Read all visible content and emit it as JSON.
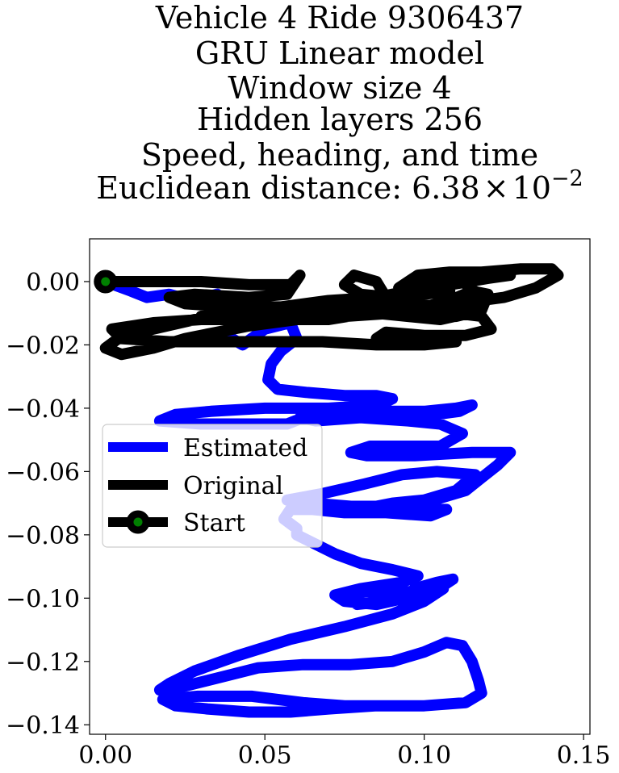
{
  "chart_data": {
    "type": "line",
    "title_lines": [
      "Vehicle 4 Ride 9306437",
      "GRU Linear model",
      "Window size 4",
      "Hidden layers 256",
      "Speed, heading, and time"
    ],
    "title_metric_prefix": "Euclidean distance: 6.38",
    "title_metric_times": "×",
    "title_metric_base": "10",
    "title_metric_exponent": "−2",
    "xlabel": "",
    "ylabel": "",
    "xlim": [
      -0.005,
      0.152
    ],
    "ylim": [
      -0.143,
      0.0135
    ],
    "x_ticks": [
      0.0,
      0.05,
      0.1,
      0.15
    ],
    "x_tick_labels": [
      "0.00",
      "0.05",
      "0.10",
      "0.15"
    ],
    "y_ticks": [
      0.0,
      -0.02,
      -0.04,
      -0.06,
      -0.08,
      -0.1,
      -0.12,
      -0.14
    ],
    "y_tick_labels": [
      "0.00",
      "−0.02",
      "−0.04",
      "−0.06",
      "−0.08",
      "−0.10",
      "−0.12",
      "−0.14"
    ],
    "grid": false,
    "legend_position": "center-left",
    "colors": {
      "estimated": "#0000ff",
      "original": "#000000",
      "start_marker_face": "#008000",
      "start_marker_edge": "#000000"
    },
    "series": [
      {
        "name": "Estimated",
        "points": [
          [
            0.0,
            0.0
          ],
          [
            0.008,
            -0.003
          ],
          [
            0.013,
            -0.005
          ],
          [
            0.02,
            -0.004
          ],
          [
            0.027,
            -0.006
          ],
          [
            0.035,
            -0.004
          ],
          [
            0.04,
            -0.01
          ],
          [
            0.038,
            -0.017
          ],
          [
            0.043,
            -0.02
          ],
          [
            0.05,
            -0.015
          ],
          [
            0.058,
            -0.013
          ],
          [
            0.06,
            -0.018
          ],
          [
            0.055,
            -0.022
          ],
          [
            0.052,
            -0.026
          ],
          [
            0.051,
            -0.031
          ],
          [
            0.054,
            -0.034
          ],
          [
            0.063,
            -0.035
          ],
          [
            0.075,
            -0.036
          ],
          [
            0.085,
            -0.036
          ],
          [
            0.09,
            -0.037
          ],
          [
            0.086,
            -0.039
          ],
          [
            0.07,
            -0.04
          ],
          [
            0.05,
            -0.04
          ],
          [
            0.033,
            -0.041
          ],
          [
            0.022,
            -0.042
          ],
          [
            0.017,
            -0.044
          ],
          [
            0.03,
            -0.045
          ],
          [
            0.05,
            -0.045
          ],
          [
            0.057,
            -0.045
          ],
          [
            0.062,
            -0.043
          ],
          [
            0.08,
            -0.041
          ],
          [
            0.1,
            -0.041
          ],
          [
            0.11,
            -0.04
          ],
          [
            0.115,
            -0.039
          ],
          [
            0.111,
            -0.041
          ],
          [
            0.096,
            -0.043
          ],
          [
            0.08,
            -0.043
          ],
          [
            0.066,
            -0.044
          ],
          [
            0.061,
            -0.043
          ],
          [
            0.07,
            -0.042
          ],
          [
            0.08,
            -0.043
          ],
          [
            0.095,
            -0.044
          ],
          [
            0.105,
            -0.045
          ],
          [
            0.112,
            -0.048
          ],
          [
            0.105,
            -0.052
          ],
          [
            0.092,
            -0.052
          ],
          [
            0.083,
            -0.052
          ],
          [
            0.077,
            -0.054
          ],
          [
            0.082,
            -0.055
          ],
          [
            0.097,
            -0.055
          ],
          [
            0.115,
            -0.054
          ],
          [
            0.127,
            -0.054
          ],
          [
            0.123,
            -0.058
          ],
          [
            0.118,
            -0.062
          ],
          [
            0.113,
            -0.066
          ],
          [
            0.103,
            -0.069
          ],
          [
            0.09,
            -0.071
          ],
          [
            0.077,
            -0.071
          ],
          [
            0.065,
            -0.07
          ],
          [
            0.057,
            -0.069
          ],
          [
            0.068,
            -0.067
          ],
          [
            0.081,
            -0.064
          ],
          [
            0.093,
            -0.061
          ],
          [
            0.104,
            -0.06
          ],
          [
            0.116,
            -0.061
          ],
          [
            0.11,
            -0.066
          ],
          [
            0.1,
            -0.069
          ],
          [
            0.09,
            -0.07
          ],
          [
            0.085,
            -0.071
          ],
          [
            0.095,
            -0.072
          ],
          [
            0.107,
            -0.072
          ],
          [
            0.102,
            -0.074
          ],
          [
            0.088,
            -0.073
          ],
          [
            0.075,
            -0.073
          ],
          [
            0.065,
            -0.072
          ],
          [
            0.058,
            -0.072
          ],
          [
            0.056,
            -0.075
          ],
          [
            0.06,
            -0.078
          ],
          [
            0.06,
            -0.08
          ],
          [
            0.066,
            -0.083
          ],
          [
            0.072,
            -0.086
          ],
          [
            0.08,
            -0.089
          ],
          [
            0.09,
            -0.091
          ],
          [
            0.098,
            -0.093
          ],
          [
            0.093,
            -0.095
          ],
          [
            0.08,
            -0.097
          ],
          [
            0.072,
            -0.099
          ],
          [
            0.075,
            -0.101
          ],
          [
            0.085,
            -0.102
          ],
          [
            0.094,
            -0.1
          ],
          [
            0.103,
            -0.098
          ],
          [
            0.109,
            -0.094
          ],
          [
            0.104,
            -0.095
          ],
          [
            0.097,
            -0.097
          ],
          [
            0.095,
            -0.1
          ],
          [
            0.088,
            -0.101
          ],
          [
            0.079,
            -0.102
          ],
          [
            0.076,
            -0.1
          ],
          [
            0.079,
            -0.098
          ],
          [
            0.086,
            -0.098
          ],
          [
            0.09,
            -0.099
          ],
          [
            0.1,
            -0.097
          ],
          [
            0.106,
            -0.097
          ],
          [
            0.1,
            -0.101
          ],
          [
            0.09,
            -0.105
          ],
          [
            0.075,
            -0.109
          ],
          [
            0.058,
            -0.113
          ],
          [
            0.042,
            -0.118
          ],
          [
            0.028,
            -0.123
          ],
          [
            0.02,
            -0.127
          ],
          [
            0.017,
            -0.129
          ],
          [
            0.024,
            -0.128
          ],
          [
            0.036,
            -0.125
          ],
          [
            0.048,
            -0.122
          ],
          [
            0.062,
            -0.121
          ],
          [
            0.077,
            -0.121
          ],
          [
            0.09,
            -0.12
          ],
          [
            0.1,
            -0.117
          ],
          [
            0.107,
            -0.114
          ],
          [
            0.112,
            -0.115
          ],
          [
            0.115,
            -0.12
          ],
          [
            0.117,
            -0.126
          ],
          [
            0.118,
            -0.13
          ],
          [
            0.113,
            -0.133
          ],
          [
            0.1,
            -0.134
          ],
          [
            0.085,
            -0.134
          ],
          [
            0.07,
            -0.135
          ],
          [
            0.058,
            -0.136
          ],
          [
            0.045,
            -0.136
          ],
          [
            0.032,
            -0.135
          ],
          [
            0.022,
            -0.134
          ],
          [
            0.018,
            -0.132
          ],
          [
            0.029,
            -0.131
          ],
          [
            0.046,
            -0.131
          ],
          [
            0.062,
            -0.133
          ],
          [
            0.075,
            -0.134
          ],
          [
            0.088,
            -0.134
          ]
        ]
      },
      {
        "name": "Original",
        "points": [
          [
            0.0,
            0.0
          ],
          [
            0.01,
            0.0
          ],
          [
            0.02,
            0.0
          ],
          [
            0.03,
            0.0
          ],
          [
            0.045,
            -0.001
          ],
          [
            0.058,
            -0.001
          ],
          [
            0.061,
            0.002
          ],
          [
            0.057,
            -0.004
          ],
          [
            0.045,
            -0.005
          ],
          [
            0.028,
            -0.004
          ],
          [
            0.02,
            -0.005
          ],
          [
            0.025,
            -0.007
          ],
          [
            0.04,
            -0.008
          ],
          [
            0.055,
            -0.008
          ],
          [
            0.07,
            -0.006
          ],
          [
            0.085,
            -0.005
          ],
          [
            0.095,
            -0.003
          ],
          [
            0.108,
            -0.001
          ],
          [
            0.12,
            0.001
          ],
          [
            0.127,
            0.002
          ],
          [
            0.12,
            0.002
          ],
          [
            0.11,
            0.002
          ],
          [
            0.1,
            0.0
          ],
          [
            0.095,
            -0.004
          ],
          [
            0.09,
            -0.007
          ],
          [
            0.08,
            -0.009
          ],
          [
            0.068,
            -0.011
          ],
          [
            0.055,
            -0.012
          ],
          [
            0.04,
            -0.012
          ],
          [
            0.028,
            -0.012
          ],
          [
            0.015,
            -0.015
          ],
          [
            0.004,
            -0.018
          ],
          [
            0.0,
            -0.021
          ],
          [
            0.005,
            -0.023
          ],
          [
            0.015,
            -0.021
          ],
          [
            0.025,
            -0.018
          ],
          [
            0.035,
            -0.016
          ],
          [
            0.045,
            -0.014
          ],
          [
            0.06,
            -0.012
          ],
          [
            0.075,
            -0.011
          ],
          [
            0.09,
            -0.01
          ],
          [
            0.1,
            -0.01
          ],
          [
            0.11,
            -0.01
          ],
          [
            0.118,
            -0.011
          ],
          [
            0.121,
            -0.015
          ],
          [
            0.113,
            -0.017
          ],
          [
            0.1,
            -0.017
          ],
          [
            0.088,
            -0.016
          ],
          [
            0.085,
            -0.018
          ],
          [
            0.098,
            -0.019
          ],
          [
            0.11,
            -0.019
          ],
          [
            0.1,
            -0.02
          ],
          [
            0.085,
            -0.02
          ],
          [
            0.068,
            -0.019
          ],
          [
            0.052,
            -0.019
          ],
          [
            0.035,
            -0.019
          ],
          [
            0.02,
            -0.019
          ],
          [
            0.005,
            -0.018
          ],
          [
            0.002,
            -0.015
          ],
          [
            0.015,
            -0.013
          ],
          [
            0.03,
            -0.012
          ],
          [
            0.045,
            -0.011
          ],
          [
            0.06,
            -0.01
          ],
          [
            0.078,
            -0.009
          ],
          [
            0.093,
            -0.008
          ],
          [
            0.11,
            -0.007
          ],
          [
            0.125,
            -0.005
          ],
          [
            0.135,
            -0.002
          ],
          [
            0.142,
            0.002
          ],
          [
            0.14,
            0.004
          ],
          [
            0.13,
            0.004
          ],
          [
            0.118,
            0.003
          ],
          [
            0.108,
            0.003
          ],
          [
            0.098,
            0.002
          ],
          [
            0.092,
            -0.002
          ],
          [
            0.094,
            -0.007
          ],
          [
            0.1,
            -0.008
          ],
          [
            0.108,
            -0.006
          ],
          [
            0.115,
            -0.003
          ],
          [
            0.12,
            -0.004
          ],
          [
            0.118,
            -0.009
          ],
          [
            0.11,
            -0.011
          ],
          [
            0.1,
            -0.011
          ],
          [
            0.095,
            -0.007
          ],
          [
            0.096,
            -0.002
          ],
          [
            0.103,
            0.0
          ],
          [
            0.112,
            0.0
          ],
          [
            0.117,
            -0.004
          ],
          [
            0.114,
            -0.01
          ],
          [
            0.105,
            -0.012
          ],
          [
            0.095,
            -0.011
          ],
          [
            0.085,
            -0.01
          ],
          [
            0.075,
            -0.009
          ],
          [
            0.062,
            -0.008
          ],
          [
            0.05,
            -0.008
          ],
          [
            0.038,
            -0.009
          ],
          [
            0.03,
            -0.011
          ],
          [
            0.04,
            -0.012
          ],
          [
            0.055,
            -0.012
          ],
          [
            0.07,
            -0.012
          ],
          [
            0.082,
            -0.01
          ],
          [
            0.088,
            -0.005
          ],
          [
            0.085,
            0.0
          ],
          [
            0.078,
            0.002
          ],
          [
            0.075,
            -0.001
          ],
          [
            0.08,
            -0.004
          ],
          [
            0.09,
            -0.005
          ],
          [
            0.1,
            -0.004
          ],
          [
            0.108,
            -0.003
          ]
        ]
      },
      {
        "name": "Start",
        "points": [
          [
            0.0,
            0.0
          ]
        ]
      }
    ]
  }
}
